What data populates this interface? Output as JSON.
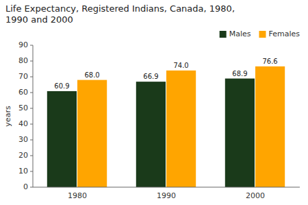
{
  "chart_data": {
    "type": "bar",
    "title": "Life Expectancy, Registered Indians, Canada, 1980,",
    "subtitle": "1990 and 2000",
    "categories": [
      "1980",
      "1990",
      "2000"
    ],
    "series": [
      {
        "name": "Males",
        "color": "#1a3a1a",
        "values": [
          60.9,
          66.9,
          68.9
        ]
      },
      {
        "name": "Females",
        "color": "#FFA500",
        "values": [
          68.0,
          74.0,
          76.6
        ],
        "value_labels": [
          "68.0",
          "74.0",
          "76.6"
        ]
      }
    ],
    "y_label": "years",
    "ylim": [
      0,
      90
    ],
    "yticks": [
      0,
      10,
      20,
      30,
      40,
      50,
      60,
      70,
      80,
      90
    ],
    "grid": false,
    "legend": "upper right",
    "data_labels": true
  }
}
